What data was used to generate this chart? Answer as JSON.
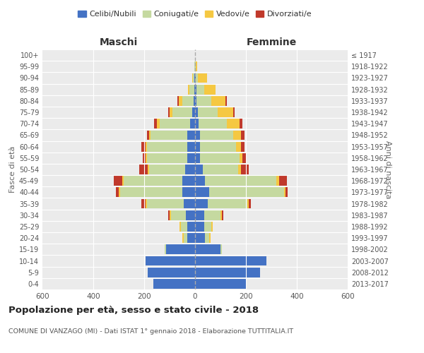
{
  "age_groups": [
    "0-4",
    "5-9",
    "10-14",
    "15-19",
    "20-24",
    "25-29",
    "30-34",
    "35-39",
    "40-44",
    "45-49",
    "50-54",
    "55-59",
    "60-64",
    "65-69",
    "70-74",
    "75-79",
    "80-84",
    "85-89",
    "90-94",
    "95-99",
    "100+"
  ],
  "birth_years": [
    "2013-2017",
    "2008-2012",
    "2003-2007",
    "1998-2002",
    "1993-1997",
    "1988-1992",
    "1983-1987",
    "1978-1982",
    "1973-1977",
    "1968-1972",
    "1963-1967",
    "1958-1962",
    "1953-1957",
    "1948-1952",
    "1943-1947",
    "1938-1942",
    "1933-1937",
    "1928-1932",
    "1923-1927",
    "1918-1922",
    "≤ 1917"
  ],
  "maschi": {
    "celibi": [
      165,
      185,
      195,
      115,
      30,
      30,
      35,
      45,
      50,
      50,
      40,
      30,
      30,
      30,
      20,
      10,
      5,
      3,
      2,
      1,
      0
    ],
    "coniugati": [
      0,
      0,
      0,
      5,
      15,
      25,
      60,
      145,
      245,
      230,
      140,
      160,
      160,
      145,
      120,
      80,
      45,
      20,
      5,
      2,
      0
    ],
    "vedovi": [
      0,
      0,
      0,
      0,
      5,
      5,
      5,
      5,
      5,
      5,
      5,
      5,
      5,
      5,
      10,
      10,
      15,
      5,
      3,
      1,
      0
    ],
    "divorziati": [
      0,
      0,
      0,
      0,
      0,
      0,
      5,
      15,
      10,
      35,
      35,
      10,
      15,
      10,
      10,
      5,
      5,
      0,
      0,
      0,
      0
    ]
  },
  "femmine": {
    "nubili": [
      200,
      255,
      280,
      100,
      40,
      35,
      35,
      50,
      55,
      40,
      30,
      20,
      20,
      20,
      15,
      10,
      5,
      5,
      2,
      1,
      0
    ],
    "coniugate": [
      0,
      0,
      0,
      5,
      15,
      30,
      65,
      155,
      295,
      280,
      140,
      155,
      140,
      130,
      110,
      80,
      60,
      30,
      10,
      3,
      0
    ],
    "vedove": [
      0,
      0,
      0,
      0,
      5,
      5,
      5,
      5,
      5,
      10,
      10,
      10,
      20,
      30,
      50,
      60,
      55,
      45,
      35,
      5,
      0
    ],
    "divorziate": [
      0,
      0,
      0,
      0,
      0,
      0,
      5,
      10,
      10,
      30,
      30,
      15,
      15,
      15,
      10,
      5,
      5,
      0,
      0,
      0,
      0
    ]
  },
  "colors": {
    "celibi": "#4472c4",
    "coniugati": "#c5d9a0",
    "vedovi": "#f5c842",
    "divorziati": "#c0392b"
  },
  "legend_labels": [
    "Celibi/Nubili",
    "Coniugati/e",
    "Vedovi/e",
    "Divorziati/e"
  ],
  "title": "Popolazione per età, sesso e stato civile - 2018",
  "subtitle": "COMUNE DI VANZAGO (MI) - Dati ISTAT 1° gennaio 2018 - Elaborazione TUTTITALIA.IT",
  "xlabel_left": "Maschi",
  "xlabel_right": "Femmine",
  "ylabel_left": "Fasce di età",
  "ylabel_right": "Anni di nascita",
  "xlim": 600,
  "plot_bg": "#ebebeb",
  "fig_bg": "#ffffff",
  "grid_color": "#ffffff",
  "bar_height": 0.85
}
